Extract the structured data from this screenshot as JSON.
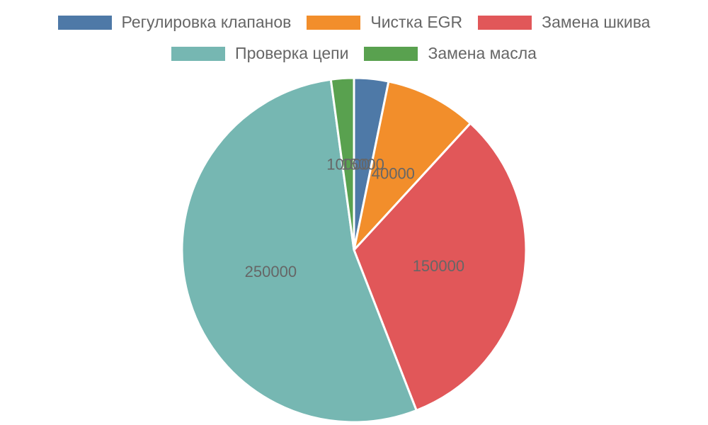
{
  "chart_data": {
    "type": "pie",
    "categories": [
      "Регулировка клапанов",
      "Чистка EGR",
      "Замена шкива",
      "Проверка цепи",
      "Замена масла"
    ],
    "values": [
      15000,
      40000,
      150000,
      250000,
      10000
    ],
    "colors": [
      "#4e79a7",
      "#f28e2b",
      "#e15759",
      "#76b7b2",
      "#59a14f"
    ],
    "legend_position": "top",
    "data_labels": [
      "15000",
      "40000",
      "150000",
      "250000",
      "10000"
    ]
  }
}
